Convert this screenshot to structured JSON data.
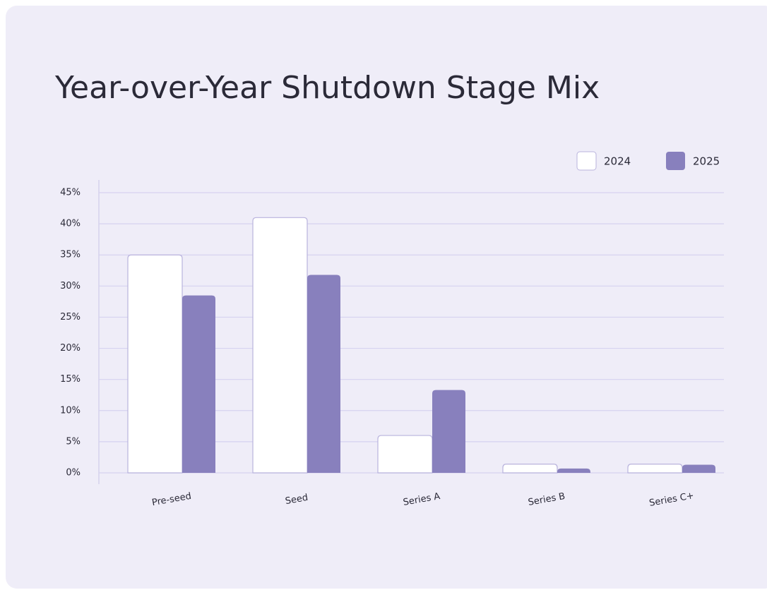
{
  "chart_data": {
    "type": "bar",
    "title": "Year-over-Year Shutdown Stage Mix",
    "categories": [
      "Pre-seed",
      "Seed",
      "Series A",
      "Series B",
      "Series C+"
    ],
    "series": [
      {
        "name": "2024",
        "color": "#ffffff",
        "values": [
          35,
          41,
          6,
          1.4,
          1.4
        ]
      },
      {
        "name": "2025",
        "color": "#8880bd",
        "values": [
          28.5,
          31.8,
          13.3,
          0.7,
          1.3
        ]
      }
    ],
    "ylim": [
      0,
      45
    ],
    "yticks": [
      {
        "value": 0,
        "label": "0%"
      },
      {
        "value": 5,
        "label": "5%"
      },
      {
        "value": 10,
        "label": "10%"
      },
      {
        "value": 15,
        "label": "15%"
      },
      {
        "value": 20,
        "label": "20%"
      },
      {
        "value": 25,
        "label": "25%"
      },
      {
        "value": 30,
        "label": "30%"
      },
      {
        "value": 35,
        "label": "35%"
      },
      {
        "value": 40,
        "label": "40%"
      },
      {
        "value": 45,
        "label": "45%"
      }
    ],
    "grid": true,
    "legend": "top-right"
  }
}
